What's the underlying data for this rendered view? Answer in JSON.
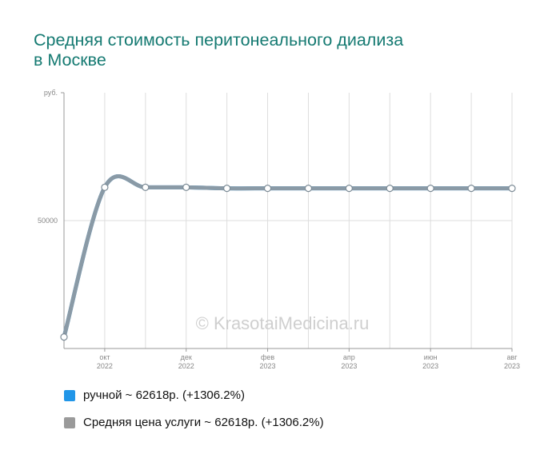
{
  "title_lines": [
    "Средняя стоимость перитонеального диализа",
    "в Москве"
  ],
  "watermark": "© KrasotaiMedicina.ru",
  "legend": [
    {
      "label": "ручной ~ 62618р. (+1306.2%)",
      "color": "#2196e8"
    },
    {
      "label": "Средняя цена услуги ~ 62618р. (+1306.2%)",
      "color": "#9a9a9a"
    }
  ],
  "chart_data": {
    "type": "line",
    "ylabel": "руб.",
    "y_ticks": [
      {
        "value": 50000,
        "label": "50000"
      }
    ],
    "ylim": [
      0,
      100000
    ],
    "x_ticks": [
      {
        "index": 1,
        "label": [
          "окт",
          "2022"
        ]
      },
      {
        "index": 3,
        "label": [
          "дек",
          "2022"
        ]
      },
      {
        "index": 5,
        "label": [
          "фев",
          "2023"
        ]
      },
      {
        "index": 7,
        "label": [
          "апр",
          "2023"
        ]
      },
      {
        "index": 9,
        "label": [
          "июн",
          "2023"
        ]
      },
      {
        "index": 11,
        "label": [
          "авг",
          "2023"
        ]
      }
    ],
    "x": [
      "2022-09",
      "2022-10",
      "2022-11",
      "2022-12",
      "2023-01",
      "2023-02",
      "2023-03",
      "2023-04",
      "2023-05",
      "2023-06",
      "2023-07",
      "2023-08"
    ],
    "series": [
      {
        "name": "ручной",
        "color": "#2196e8",
        "values": [
          4500,
          63000,
          63000,
          63000,
          62618,
          62618,
          62618,
          62618,
          62618,
          62618,
          62618,
          62618
        ]
      },
      {
        "name": "Средняя цена услуги",
        "color": "#8a9aa6",
        "values": [
          4500,
          63000,
          63000,
          63000,
          62618,
          62618,
          62618,
          62618,
          62618,
          62618,
          62618,
          62618
        ]
      }
    ],
    "grid": true
  }
}
